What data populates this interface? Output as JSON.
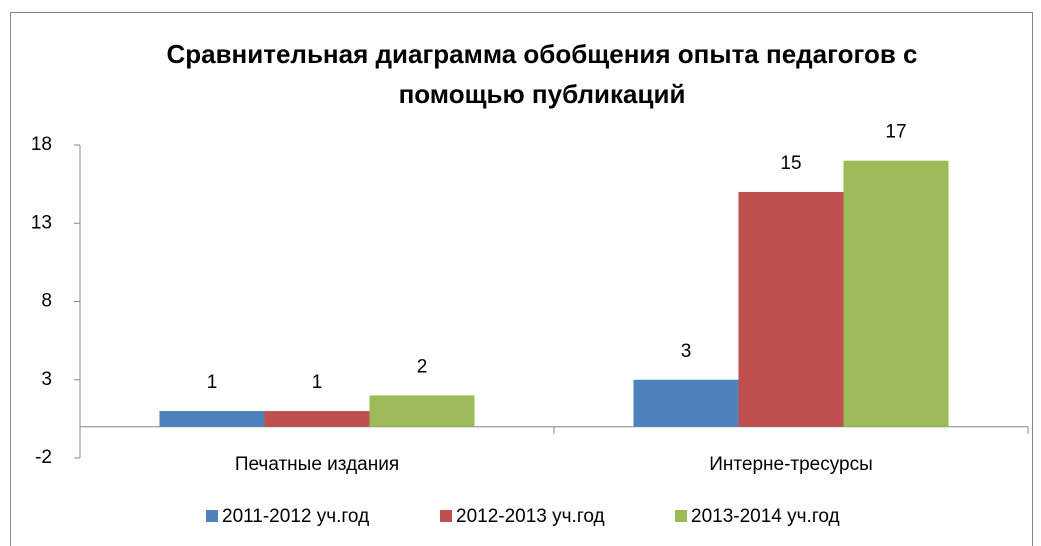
{
  "chart_data": {
    "type": "bar",
    "title": "Сравнительная диаграмма обобщения опыта педагогов с помощью публикаций",
    "categories": [
      "Печатные издания",
      "Интерне-тресурсы"
    ],
    "series": [
      {
        "name": "2011-2012 уч.год",
        "color": "#4f81bd",
        "values": [
          1,
          3
        ]
      },
      {
        "name": "2012-2013 уч.год",
        "color": "#c0504d",
        "values": [
          1,
          15
        ]
      },
      {
        "name": "2013-2014 уч.год",
        "color": "#9bbb59",
        "values": [
          2,
          17
        ]
      }
    ],
    "ylim": [
      -2,
      18
    ],
    "yticks": [
      -2,
      3,
      8,
      13,
      18
    ],
    "grid": false,
    "legend": "bottom"
  }
}
